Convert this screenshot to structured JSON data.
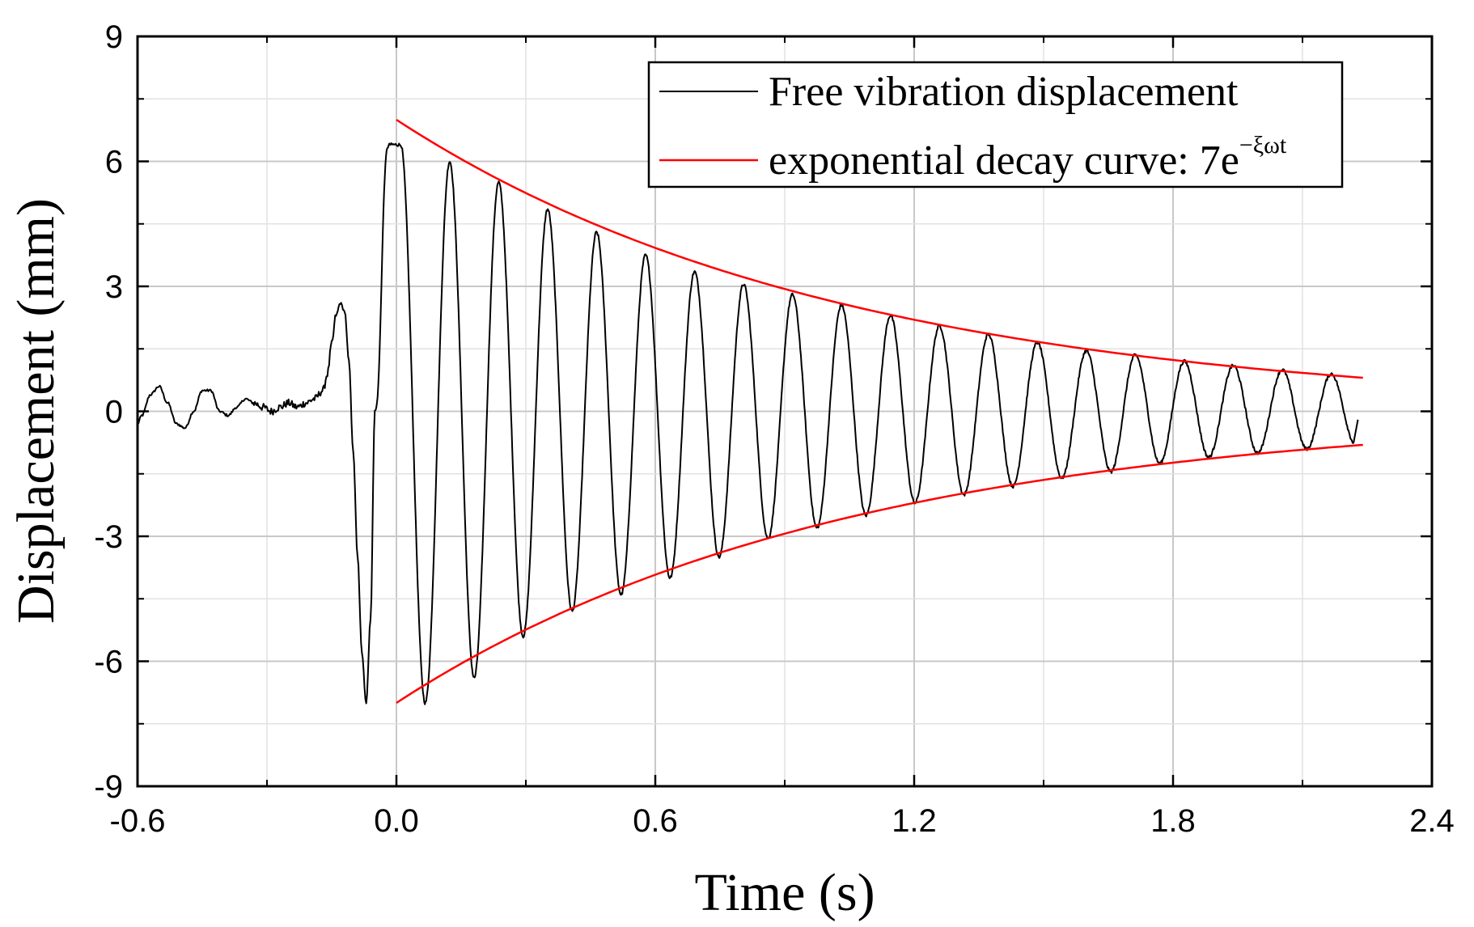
{
  "chart_data": {
    "type": "line",
    "title": "",
    "xlabel": "Time (s)",
    "ylabel": "Displacement (mm)",
    "xlim": [
      -0.6,
      2.4
    ],
    "ylim": [
      -9,
      9
    ],
    "xticks": [
      -0.6,
      0.0,
      0.6,
      1.2,
      1.8,
      2.4
    ],
    "xtick_labels": [
      "-0.6",
      "0.0",
      "0.6",
      "1.2",
      "1.8",
      "2.4"
    ],
    "yticks": [
      -9,
      -6,
      -3,
      0,
      3,
      6,
      9
    ],
    "ytick_labels": [
      "-9",
      "-6",
      "-3",
      "0",
      "3",
      "6",
      "9"
    ],
    "grid": true,
    "legend_position": "top-right",
    "series": [
      {
        "name": "Free vibration displacement",
        "color": "#000000",
        "description": "measured displacement trace",
        "pre_impulse_x": [
          -0.6,
          -0.59,
          -0.57,
          -0.55,
          -0.53,
          -0.51,
          -0.49,
          -0.47,
          -0.45,
          -0.43,
          -0.41,
          -0.39,
          -0.37,
          -0.35,
          -0.33,
          -0.31,
          -0.29,
          -0.27,
          -0.25,
          -0.23,
          -0.21,
          -0.19,
          -0.17,
          -0.16,
          -0.15,
          -0.14,
          -0.13,
          -0.12,
          -0.11,
          -0.1,
          -0.09,
          -0.08,
          -0.07,
          -0.06,
          -0.05
        ],
        "pre_impulse_y": [
          -0.3,
          -0.1,
          0.4,
          0.6,
          0.2,
          -0.3,
          -0.4,
          0.0,
          0.5,
          0.5,
          0.0,
          -0.1,
          0.1,
          0.3,
          0.2,
          0.1,
          0.0,
          0.1,
          0.2,
          0.1,
          0.2,
          0.3,
          0.5,
          0.9,
          1.6,
          2.3,
          2.6,
          2.4,
          1.2,
          -1.0,
          -3.5,
          -5.8,
          -7.0,
          -5.0,
          0.0
        ],
        "oscillation_start": -0.05,
        "oscillation_end": 2.22,
        "first_peak_time": 0.01,
        "first_peak_value": 6.4,
        "period": 0.1135,
        "negative_offset": 0.25,
        "final_value": -0.2
      },
      {
        "name": "exponential decay curve: 7e",
        "name_superscript": "−ξωt",
        "color": "#ff0000",
        "amplitude": 7,
        "decay_rate": 0.965,
        "x_start": 0.0,
        "x_end": 2.24,
        "description": "upper and lower envelopes ±7e^(−ξωt)"
      }
    ],
    "peaks_upper": [
      6.4,
      6.0,
      5.5,
      4.85,
      4.3,
      3.75,
      3.35,
      3.05,
      2.8,
      2.55,
      2.3,
      2.05,
      1.85,
      1.65,
      1.45,
      1.35,
      1.2,
      1.1,
      1.0,
      0.9
    ],
    "peaks_lower": [
      -7.0,
      -6.4,
      -5.4,
      -4.8,
      -4.4,
      -4.0,
      -3.5,
      -3.05,
      -2.8,
      -2.5,
      -2.2,
      -2.0,
      -1.8,
      -1.6,
      -1.45,
      -1.25,
      -1.1,
      -1.0,
      -0.9,
      -0.8
    ]
  }
}
